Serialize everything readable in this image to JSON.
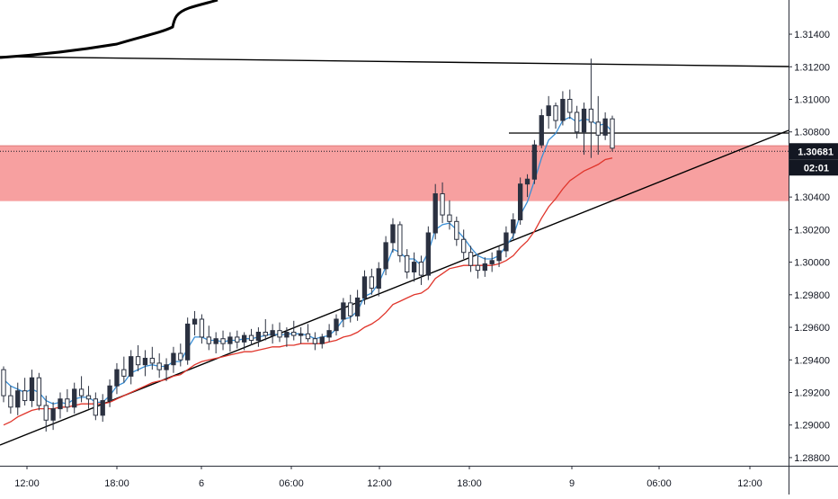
{
  "chart_data": {
    "type": "candlestick",
    "x_ticks": [
      "12:00",
      "18:00",
      "6",
      "06:00",
      "12:00",
      "18:00",
      "9",
      "06:00",
      "12:00"
    ],
    "y_ticks": [
      "1.31400",
      "1.31200",
      "1.31000",
      "1.30800",
      "1.30400",
      "1.30200",
      "1.30000",
      "1.29800",
      "1.29600",
      "1.29400",
      "1.29200",
      "1.29000",
      "1.28800"
    ],
    "ylim": [
      1.2875,
      1.3161
    ],
    "grid": false,
    "current_price_label": "1.30681",
    "countdown_label": "02:01",
    "colors": {
      "up_candle": "#2b3140",
      "down_candle": "#2b3140",
      "fast_ma": "#3a8fd6",
      "slow_ma": "#e0352b",
      "zone_fill": "#f7a0a0",
      "line": "#000000",
      "price_label_bg": "#131722"
    },
    "zone": {
      "y_low": 1.30375,
      "y_high": 1.30715
    },
    "ohlc": [
      [
        1.2934,
        1.2936,
        1.2914,
        1.2918
      ],
      [
        1.2918,
        1.2924,
        1.2907,
        1.2911
      ],
      [
        1.2911,
        1.2926,
        1.2906,
        1.2921
      ],
      [
        1.2921,
        1.2929,
        1.2912,
        1.2915
      ],
      [
        1.2915,
        1.2934,
        1.2911,
        1.2929
      ],
      [
        1.2929,
        1.2932,
        1.2909,
        1.2912
      ],
      [
        1.2912,
        1.2918,
        1.2896,
        1.2903
      ],
      [
        1.2903,
        1.2914,
        1.2897,
        1.291
      ],
      [
        1.291,
        1.292,
        1.2904,
        1.2916
      ],
      [
        1.2916,
        1.2922,
        1.2908,
        1.2911
      ],
      [
        1.2911,
        1.2926,
        1.2907,
        1.2922
      ],
      [
        1.2922,
        1.293,
        1.2914,
        1.2918
      ],
      [
        1.2918,
        1.2924,
        1.291,
        1.2916
      ],
      [
        1.2916,
        1.292,
        1.2903,
        1.2906
      ],
      [
        1.2906,
        1.2919,
        1.2902,
        1.2915
      ],
      [
        1.2915,
        1.2928,
        1.2911,
        1.2924
      ],
      [
        1.2924,
        1.2938,
        1.2919,
        1.2934
      ],
      [
        1.2934,
        1.2942,
        1.2926,
        1.293
      ],
      [
        1.293,
        1.2946,
        1.2925,
        1.2942
      ],
      [
        1.2942,
        1.2949,
        1.2933,
        1.2937
      ],
      [
        1.2937,
        1.2946,
        1.293,
        1.2941
      ],
      [
        1.2941,
        1.2948,
        1.2934,
        1.2938
      ],
      [
        1.2938,
        1.2944,
        1.2929,
        1.2934
      ],
      [
        1.2934,
        1.2941,
        1.2927,
        1.2937
      ],
      [
        1.2937,
        1.2948,
        1.2932,
        1.2944
      ],
      [
        1.2944,
        1.295,
        1.2936,
        1.294
      ],
      [
        1.294,
        1.2966,
        1.2937,
        1.2962
      ],
      [
        1.2962,
        1.297,
        1.2955,
        1.2965
      ],
      [
        1.2965,
        1.2968,
        1.295,
        1.2954
      ],
      [
        1.2954,
        1.2961,
        1.2946,
        1.295
      ],
      [
        1.295,
        1.2957,
        1.2944,
        1.2953
      ],
      [
        1.2953,
        1.2958,
        1.2946,
        1.295
      ],
      [
        1.295,
        1.2957,
        1.2945,
        1.2954
      ],
      [
        1.2954,
        1.2958,
        1.2947,
        1.2951
      ],
      [
        1.2951,
        1.2957,
        1.2946,
        1.2955
      ],
      [
        1.2955,
        1.2959,
        1.2949,
        1.2952
      ],
      [
        1.2952,
        1.296,
        1.2948,
        1.2957
      ],
      [
        1.2957,
        1.2965,
        1.2952,
        1.2955
      ],
      [
        1.2955,
        1.2962,
        1.295,
        1.2958
      ],
      [
        1.2958,
        1.2963,
        1.2951,
        1.2954
      ],
      [
        1.2954,
        1.296,
        1.2948,
        1.2957
      ],
      [
        1.2957,
        1.2964,
        1.2952,
        1.2955
      ],
      [
        1.2955,
        1.296,
        1.295,
        1.2956
      ],
      [
        1.2956,
        1.2962,
        1.2951,
        1.2953
      ],
      [
        1.2953,
        1.2957,
        1.2946,
        1.295
      ],
      [
        1.295,
        1.2956,
        1.2947,
        1.2954
      ],
      [
        1.2954,
        1.2962,
        1.2951,
        1.2958
      ],
      [
        1.2958,
        1.2968,
        1.2955,
        1.2965
      ],
      [
        1.2965,
        1.2978,
        1.296,
        1.2975
      ],
      [
        1.2975,
        1.298,
        1.2963,
        1.2967
      ],
      [
        1.2967,
        1.2983,
        1.2964,
        1.2978
      ],
      [
        1.2978,
        1.2995,
        1.2974,
        1.2991
      ],
      [
        1.2991,
        1.2996,
        1.298,
        1.2984
      ],
      [
        1.2984,
        1.3,
        1.2979,
        1.2996
      ],
      [
        1.2996,
        1.3016,
        1.2992,
        1.3012
      ],
      [
        1.3012,
        1.3027,
        1.3006,
        1.3023
      ],
      [
        1.3023,
        1.3025,
        1.3,
        1.3004
      ],
      [
        1.3004,
        1.3008,
        1.299,
        1.2994
      ],
      [
        1.2994,
        1.3006,
        1.2988,
        1.3
      ],
      [
        1.3,
        1.3004,
        1.2986,
        1.2992
      ],
      [
        1.2992,
        1.3022,
        1.2989,
        1.3018
      ],
      [
        1.3018,
        1.3048,
        1.3014,
        1.3042
      ],
      [
        1.3042,
        1.3049,
        1.3024,
        1.3029
      ],
      [
        1.3029,
        1.3038,
        1.302,
        1.3025
      ],
      [
        1.3025,
        1.3028,
        1.301,
        1.3014
      ],
      [
        1.3014,
        1.302,
        1.3002,
        1.3006
      ],
      [
        1.3006,
        1.301,
        1.2994,
        1.2998
      ],
      [
        1.2998,
        1.3004,
        1.299,
        1.2995
      ],
      [
        1.2995,
        1.3003,
        1.2991,
        1.2999
      ],
      [
        1.2999,
        1.3006,
        1.2994,
        1.3001
      ],
      [
        1.3001,
        1.301,
        1.2997,
        1.3007
      ],
      [
        1.3007,
        1.3022,
        1.3003,
        1.3018
      ],
      [
        1.3018,
        1.303,
        1.3014,
        1.3026
      ],
      [
        1.3026,
        1.3052,
        1.3023,
        1.3048
      ],
      [
        1.3048,
        1.3054,
        1.304,
        1.3051
      ],
      [
        1.3051,
        1.3075,
        1.3048,
        1.3072
      ],
      [
        1.3072,
        1.3094,
        1.307,
        1.309
      ],
      [
        1.309,
        1.3102,
        1.3082,
        1.3096
      ],
      [
        1.3096,
        1.3098,
        1.3082,
        1.3087
      ],
      [
        1.3087,
        1.3105,
        1.3084,
        1.31
      ],
      [
        1.31,
        1.3106,
        1.3088,
        1.3092
      ],
      [
        1.3092,
        1.3096,
        1.3076,
        1.308
      ],
      [
        1.308,
        1.3098,
        1.3066,
        1.3094
      ],
      [
        1.3094,
        1.3125,
        1.3064,
        1.3086
      ],
      [
        1.3086,
        1.3102,
        1.3066,
        1.3078
      ],
      [
        1.3078,
        1.3092,
        1.3075,
        1.3088
      ],
      [
        1.3088,
        1.309,
        1.3068,
        1.307
      ]
    ],
    "fast_ma": [
      1.2928,
      1.2924,
      1.2922,
      1.292,
      1.2922,
      1.292,
      1.2915,
      1.2913,
      1.2914,
      1.2913,
      1.2916,
      1.2917,
      1.2917,
      1.2914,
      1.2914,
      1.2918,
      1.2924,
      1.2926,
      1.2932,
      1.2934,
      1.2936,
      1.2937,
      1.2936,
      1.2936,
      1.2939,
      1.2939,
      1.2947,
      1.2954,
      1.2954,
      1.2952,
      1.2952,
      1.2951,
      1.2952,
      1.2952,
      1.2953,
      1.2953,
      1.2954,
      1.2955,
      1.2956,
      1.2955,
      1.2956,
      1.2956,
      1.2956,
      1.2955,
      1.2953,
      1.2954,
      1.2955,
      1.2959,
      1.2965,
      1.2966,
      1.297,
      1.2979,
      1.2981,
      1.2987,
      1.2997,
      1.3008,
      1.3006,
      1.3002,
      1.3002,
      1.2998,
      1.3006,
      1.302,
      1.3023,
      1.3024,
      1.302,
      1.3015,
      1.3009,
      1.3004,
      1.3002,
      1.3002,
      1.3004,
      1.301,
      1.3016,
      1.3029,
      1.3037,
      1.305,
      1.3064,
      1.3075,
      1.3079,
      1.3087,
      1.3089,
      1.3086,
      1.3088,
      1.3087,
      1.3084,
      1.3085,
      1.308
    ],
    "slow_ma": [
      1.29,
      1.2902,
      1.2905,
      1.2907,
      1.2909,
      1.291,
      1.291,
      1.291,
      1.2911,
      1.2911,
      1.2912,
      1.2913,
      1.2913,
      1.2913,
      1.2913,
      1.2914,
      1.2916,
      1.2918,
      1.292,
      1.2922,
      1.2924,
      1.2926,
      1.2927,
      1.2928,
      1.293,
      1.2931,
      1.2934,
      1.2937,
      1.2939,
      1.294,
      1.2941,
      1.2942,
      1.2943,
      1.2944,
      1.2945,
      1.2945,
      1.2946,
      1.2947,
      1.2948,
      1.2948,
      1.2949,
      1.2949,
      1.295,
      1.295,
      1.295,
      1.295,
      1.2951,
      1.2952,
      1.2954,
      1.2955,
      1.2957,
      1.296,
      1.2962,
      1.2965,
      1.2969,
      1.2974,
      1.2976,
      1.2978,
      1.298,
      1.2981,
      1.2984,
      1.299,
      1.2993,
      1.2996,
      1.2997,
      1.2998,
      1.2998,
      1.2998,
      1.2998,
      1.2998,
      1.2999,
      1.3001,
      1.3004,
      1.3009,
      1.3013,
      1.3019,
      1.3027,
      1.3034,
      1.3039,
      1.3045,
      1.305,
      1.3053,
      1.3056,
      1.3058,
      1.306,
      1.3063,
      1.3064
    ]
  }
}
